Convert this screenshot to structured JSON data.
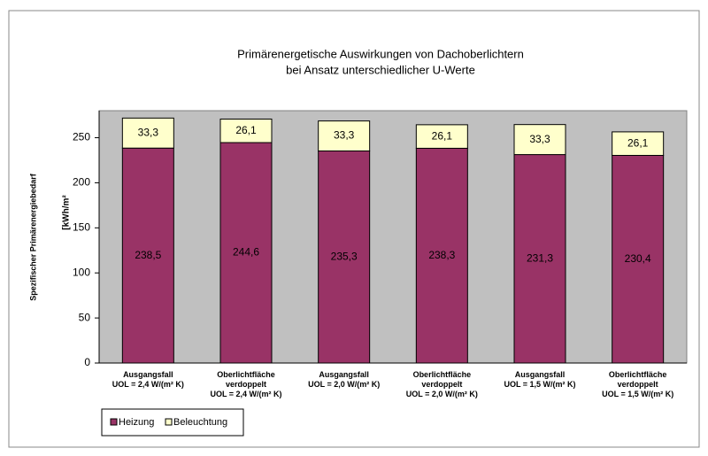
{
  "chart_data": {
    "type": "stacked_bar",
    "title": "Primärenergetische Auswirkungen von Dachoberlichtern",
    "subtitle": "bei Ansatz unterschiedlicher U-Werte",
    "y_label": "Spezifischer Primärenergiebedarf",
    "y_unit": "[kWh/m²",
    "categories": [
      "Ausgangsfall\nUOL = 2,4 W/(m² K)",
      "Oberlichtfläche\nverdoppelt\nUOL = 2,4 W/(m² K)",
      "Ausgangsfall\nUOL = 2,0 W/(m² K)",
      "Oberlichtfläche\nverdoppelt\nUOL = 2,0 W/(m² K)",
      "Ausgangsfall\nUOL = 1,5 W/(m² K)",
      "Oberlichtfläche\nverdoppelt\nUOL = 1,5 W/(m² K)"
    ],
    "series": [
      {
        "name": "Heizung",
        "color": "#993366",
        "values": [
          238.5,
          244.6,
          235.3,
          238.3,
          231.3,
          230.4
        ],
        "value_labels": [
          "238,5",
          "244,6",
          "235,3",
          "238,3",
          "231,3",
          "230,4"
        ]
      },
      {
        "name": "Beleuchtung",
        "color": "#ffffcc",
        "values": [
          33.3,
          26.1,
          33.3,
          26.1,
          33.3,
          26.1
        ],
        "value_labels": [
          "33,3",
          "26,1",
          "33,3",
          "26,1",
          "33,3",
          "26,1"
        ]
      }
    ],
    "ylim": [
      0,
      280
    ],
    "yticks": [
      0,
      50,
      100,
      150,
      200,
      250
    ],
    "grid": false,
    "legend": "bottom-left"
  }
}
